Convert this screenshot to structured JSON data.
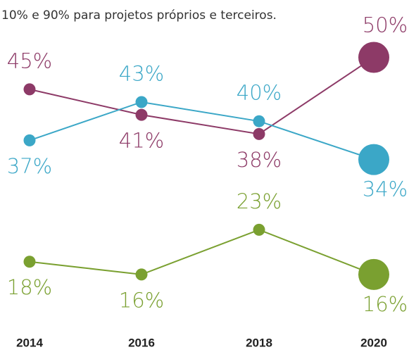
{
  "chart_data": {
    "type": "line",
    "subtitle": "10% e 90% para projetos próprios e terceiros.",
    "categories": [
      "2014",
      "2016",
      "2018",
      "2020"
    ],
    "series": [
      {
        "color": "#8d3a67",
        "values": [
          45,
          41,
          38,
          50
        ],
        "value_labels": [
          "45%",
          "41%",
          "38%",
          "50%"
        ]
      },
      {
        "color": "#3ba7c7",
        "values": [
          37,
          43,
          40,
          34
        ],
        "value_labels": [
          "37%",
          "43%",
          "40%",
          "34%"
        ]
      },
      {
        "color": "#7aa030",
        "values": [
          18,
          16,
          23,
          16
        ],
        "value_labels": [
          "18%",
          "16%",
          "23%",
          "16%"
        ]
      }
    ]
  }
}
